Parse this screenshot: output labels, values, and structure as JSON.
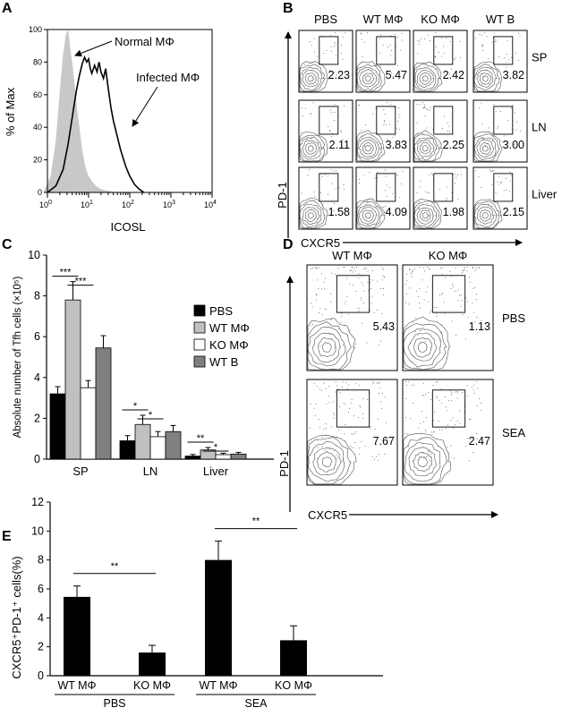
{
  "panelA": {
    "letter": "A",
    "ylabel": "% of Max",
    "xlabel": "ICOSL",
    "yticks": [
      "0",
      "20",
      "40",
      "60",
      "80",
      "100"
    ],
    "xticks": [
      {
        "base": "10",
        "exp": "0"
      },
      {
        "base": "10",
        "exp": "1"
      },
      {
        "base": "10",
        "exp": "2"
      },
      {
        "base": "10",
        "exp": "3"
      },
      {
        "base": "10",
        "exp": "4"
      }
    ],
    "annotations": {
      "normal": "Normal MΦ",
      "infected": "Infected MΦ"
    },
    "chart_data": {
      "type": "area",
      "xscale": "log",
      "xlim": [
        1,
        10000
      ],
      "ylim": [
        0,
        100
      ],
      "series": [
        {
          "name": "Normal MΦ",
          "filled": true,
          "color": "#c8c8c8",
          "x": [
            0.8,
            1.2,
            1.6,
            2,
            2.4,
            2.8,
            3.2,
            3.6,
            4,
            4.6,
            5.2,
            6,
            7,
            8,
            9,
            10,
            12,
            15,
            20,
            30,
            50
          ],
          "y": [
            0,
            10,
            32,
            62,
            85,
            97,
            100,
            88,
            80,
            66,
            52,
            40,
            26,
            18,
            13,
            10,
            7,
            4,
            2,
            1,
            0
          ]
        },
        {
          "name": "Infected MΦ",
          "filled": false,
          "color": "#000000",
          "x": [
            1,
            1.6,
            2.4,
            3.2,
            4,
            5,
            6,
            7,
            8,
            9,
            10,
            11,
            12,
            14,
            16,
            18,
            20,
            23,
            26,
            30,
            35,
            40,
            50,
            60,
            80,
            100,
            130,
            170,
            220
          ],
          "y": [
            0,
            4,
            14,
            30,
            46,
            62,
            72,
            79,
            83,
            80,
            82,
            76,
            73,
            78,
            74,
            80,
            74,
            70,
            76,
            64,
            52,
            44,
            34,
            26,
            16,
            10,
            5,
            2,
            0
          ]
        }
      ]
    }
  },
  "panelB": {
    "letter": "B",
    "columns": [
      "PBS",
      "WT MΦ",
      "KO MΦ",
      "WT B"
    ],
    "rows": [
      "SP",
      "LN",
      "Liver"
    ],
    "values": [
      [
        "2.23",
        "5.47",
        "2.42",
        "3.82"
      ],
      [
        "2.11",
        "3.83",
        "2.25",
        "3.00"
      ],
      [
        "1.58",
        "4.09",
        "1.98",
        "2.15"
      ]
    ],
    "ylabel": "PD-1",
    "xlabel": "CXCR5"
  },
  "panelC": {
    "letter": "C",
    "chart_data": {
      "type": "bar",
      "categories": [
        "SP",
        "LN",
        "Liver"
      ],
      "ylabel": "Absolute number of Tfh cells (×10⁵)",
      "ylim": [
        0,
        10
      ],
      "yticks": [
        "0",
        "2",
        "4",
        "6",
        "8",
        "10"
      ],
      "series": [
        {
          "name": "PBS",
          "color": "#000000",
          "values": [
            3.2,
            0.9,
            0.15
          ],
          "errors": [
            0.35,
            0.25,
            0.08
          ]
        },
        {
          "name": "WT MΦ",
          "color": "#c0c0c0",
          "values": [
            7.8,
            1.7,
            0.45
          ],
          "errors": [
            0.9,
            0.45,
            0.12
          ]
        },
        {
          "name": "KO MΦ",
          "color": "#ffffff",
          "values": [
            3.5,
            1.1,
            0.22
          ],
          "errors": [
            0.35,
            0.25,
            0.07
          ]
        },
        {
          "name": "WT B",
          "color": "#808080",
          "values": [
            5.45,
            1.35,
            0.25
          ],
          "errors": [
            0.6,
            0.3,
            0.08
          ]
        }
      ],
      "legend": "right",
      "significance": [
        {
          "category": "SP",
          "pairs": [
            [
              "PBS",
              "WT MΦ"
            ],
            [
              "WT MΦ",
              "KO MΦ"
            ]
          ],
          "labels": [
            "***",
            "***"
          ]
        },
        {
          "category": "LN",
          "pairs": [
            [
              "PBS",
              "WT MΦ"
            ],
            [
              "WT MΦ",
              "KO MΦ"
            ]
          ],
          "labels": [
            "*",
            "*"
          ]
        },
        {
          "category": "Liver",
          "pairs": [
            [
              "PBS",
              "WT MΦ"
            ],
            [
              "WT MΦ",
              "KO MΦ"
            ]
          ],
          "labels": [
            "**",
            "*"
          ]
        }
      ]
    }
  },
  "panelD": {
    "letter": "D",
    "columns": [
      "WT MΦ",
      "KO MΦ"
    ],
    "rows": [
      "PBS",
      "SEA"
    ],
    "values": [
      [
        "5.43",
        "1.13"
      ],
      [
        "7.67",
        "2.47"
      ]
    ],
    "ylabel": "PD-1",
    "xlabel": "CXCR5"
  },
  "panelE": {
    "letter": "E",
    "chart_data": {
      "type": "bar",
      "ylabel": "CXCR5⁺PD-1⁺ cells(%)",
      "ylim": [
        0,
        12
      ],
      "yticks": [
        "0",
        "2",
        "4",
        "6",
        "8",
        "10",
        "12"
      ],
      "bars": [
        {
          "group": "PBS",
          "label": "WT MΦ",
          "value": 5.45,
          "error": 0.75
        },
        {
          "group": "PBS",
          "label": "KO MΦ",
          "value": 1.6,
          "error": 0.5
        },
        {
          "group": "SEA",
          "label": "WT MΦ",
          "value": 8.0,
          "error": 1.3
        },
        {
          "group": "SEA",
          "label": "KO MΦ",
          "value": 2.45,
          "error": 1.0
        }
      ],
      "groups": [
        "PBS",
        "SEA"
      ],
      "significance": [
        {
          "group": "PBS",
          "label": "**"
        },
        {
          "group": "SEA",
          "label": "**"
        }
      ]
    }
  }
}
